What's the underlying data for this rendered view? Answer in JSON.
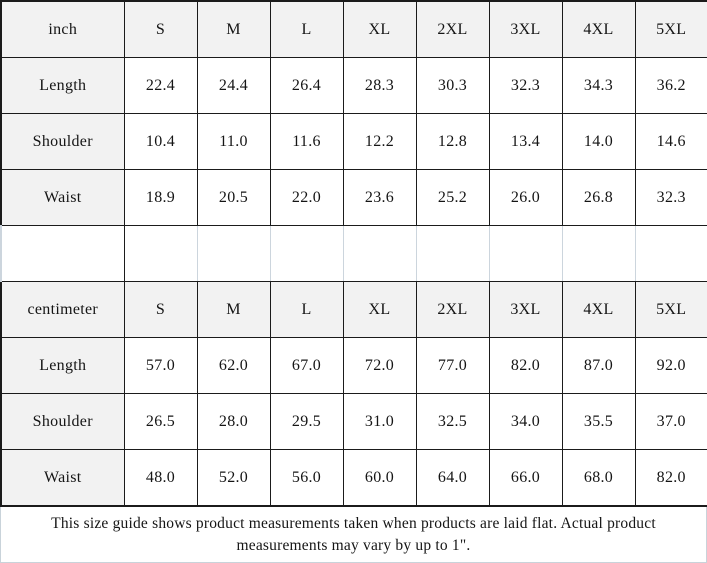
{
  "colors": {
    "header_background": "#f2f2f2",
    "grid_border": "#1b1b1b",
    "spacer_border": "#ccd5dd",
    "text": "#151515"
  },
  "note": "This size guide shows product measurements taken when products are laid flat. Actual product measurements may vary by up to 1\".",
  "chart_data": [
    {
      "type": "table",
      "unit": "inch",
      "columns": [
        "inch",
        "S",
        "M",
        "L",
        "XL",
        "2XL",
        "3XL",
        "4XL",
        "5XL"
      ],
      "rows": [
        [
          "Length",
          "22.4",
          "24.4",
          "26.4",
          "28.3",
          "30.3",
          "32.3",
          "34.3",
          "36.2"
        ],
        [
          "Shoulder",
          "10.4",
          "11.0",
          "11.6",
          "12.2",
          "12.8",
          "13.4",
          "14.0",
          "14.6"
        ],
        [
          "Waist",
          "18.9",
          "20.5",
          "22.0",
          "23.6",
          "25.2",
          "26.0",
          "26.8",
          "32.3"
        ]
      ]
    },
    {
      "type": "table",
      "unit": "centimeter",
      "columns": [
        "centimeter",
        "S",
        "M",
        "L",
        "XL",
        "2XL",
        "3XL",
        "4XL",
        "5XL"
      ],
      "rows": [
        [
          "Length",
          "57.0",
          "62.0",
          "67.0",
          "72.0",
          "77.0",
          "82.0",
          "87.0",
          "92.0"
        ],
        [
          "Shoulder",
          "26.5",
          "28.0",
          "29.5",
          "31.0",
          "32.5",
          "34.0",
          "35.5",
          "37.0"
        ],
        [
          "Waist",
          "48.0",
          "52.0",
          "56.0",
          "60.0",
          "64.0",
          "66.0",
          "68.0",
          "82.0"
        ]
      ]
    }
  ]
}
